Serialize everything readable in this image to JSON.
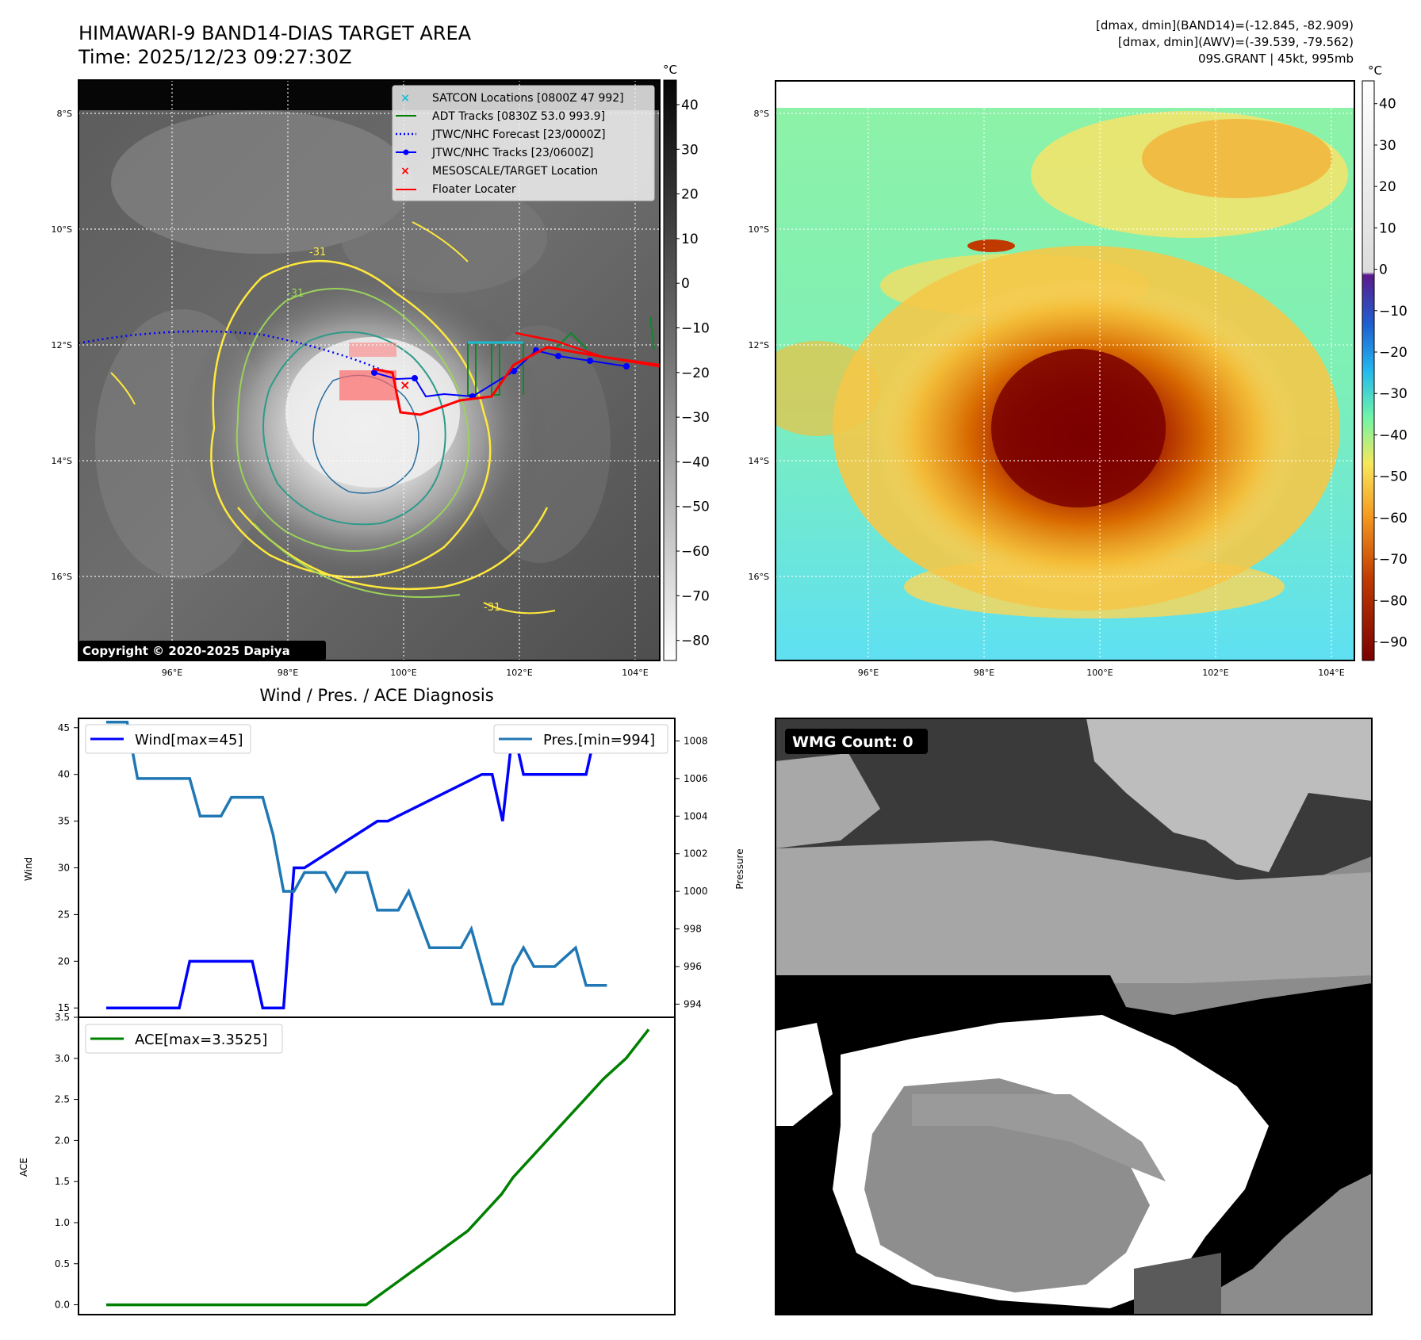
{
  "header": {
    "title_line1": "HIMAWARI-9 BAND14-DIAS TARGET AREA",
    "title_line2": "Time: 2025/12/23 09:27:30Z",
    "stats_line1": "[dmax, dmin](BAND14)=(-12.845, -82.909)",
    "stats_line2": "[dmax, dmin](AWV)=(-39.539, -79.562)",
    "stats_line3": "09S.GRANT | 45kt, 995mb"
  },
  "ir_panel": {
    "copyright": "Copyright © 2020-2025 Dapiya",
    "unit": "°C",
    "lat_labels": [
      "8°S",
      "10°S",
      "12°S",
      "14°S",
      "16°S"
    ],
    "lon_labels": [
      "96°E",
      "98°E",
      "100°E",
      "102°E",
      "104°E"
    ],
    "cbar_ticks": [
      "40",
      "30",
      "20",
      "10",
      "0",
      "−10",
      "−20",
      "−30",
      "−40",
      "−50",
      "−60",
      "−70",
      "−80"
    ],
    "legend": [
      "SATCON Locations [0800Z 47 992]",
      "ADT Tracks [0830Z 53.0 993.9]",
      "JTWC/NHC Forecast [23/0000Z]",
      "JTWC/NHC Tracks [23/0600Z]",
      "MESOSCALE/TARGET Location",
      "Floater Locater"
    ],
    "contour_labels": [
      "-31",
      "-31",
      "-31"
    ],
    "colors": {
      "satcon": "#17becf",
      "adt": "#008000",
      "forecast": "#0000ff",
      "tracks": "#0000ff",
      "target": "#ff0000",
      "floater": "#ff0000"
    }
  },
  "awv_panel": {
    "unit": "°C",
    "lat_labels": [
      "8°S",
      "10°S",
      "12°S",
      "14°S",
      "16°S"
    ],
    "lon_labels": [
      "96°E",
      "98°E",
      "100°E",
      "102°E",
      "104°E"
    ],
    "cbar_ticks": [
      "40",
      "30",
      "20",
      "10",
      "0",
      "−10",
      "−20",
      "−30",
      "−40",
      "−50",
      "−60",
      "−70",
      "−80",
      "−90"
    ]
  },
  "wmg_panel": {
    "label": "WMG Count: 0"
  },
  "chart_data": [
    {
      "type": "line",
      "title": "Wind / Pres. / ACE Diagnosis",
      "ylabel": "Wind",
      "y2label": "Pressure",
      "ylim": [
        14,
        46
      ],
      "y2lim": [
        993.3,
        1009.2
      ],
      "yticks": [
        15,
        20,
        25,
        30,
        35,
        40,
        45
      ],
      "y2ticks": [
        994,
        996,
        998,
        1000,
        1002,
        1004,
        1006,
        1008
      ],
      "series": [
        {
          "name": "Wind",
          "legend": "Wind[max=45]",
          "color": "#0000ff",
          "x": [
            0,
            7,
            8,
            14,
            15,
            17,
            18,
            19,
            26,
            27,
            36,
            37,
            38,
            39,
            40,
            46,
            47,
            52
          ],
          "values": [
            15,
            15,
            20,
            20,
            15,
            15,
            30,
            30,
            35,
            35,
            40,
            40,
            35,
            45,
            40,
            40,
            45,
            45
          ]
        },
        {
          "name": "Pres.",
          "legend": "Pres.[min=994]",
          "color": "#1f77b4",
          "x": [
            0,
            2,
            3,
            8,
            9,
            11,
            12,
            15,
            16,
            17,
            18,
            19,
            21,
            22,
            23,
            25,
            26,
            28,
            29,
            31,
            32,
            34,
            35,
            37,
            38,
            39,
            40,
            41,
            42,
            43,
            45,
            46,
            47,
            48
          ],
          "values": [
            1009,
            1009,
            1006,
            1006,
            1004,
            1004,
            1005,
            1005,
            1003,
            1000,
            1000,
            1001,
            1001,
            1000,
            1001,
            1001,
            999,
            999,
            1000,
            997,
            997,
            997,
            998,
            994,
            994,
            996,
            997,
            996,
            996,
            996,
            997,
            995,
            995,
            995
          ]
        }
      ]
    },
    {
      "type": "line",
      "ylabel": "ACE",
      "ylim": [
        -0.12,
        3.5
      ],
      "yticks": [
        "0.0",
        "0.5",
        "1.0",
        "1.5",
        "2.0",
        "2.5",
        "3.0",
        "3.5"
      ],
      "series": [
        {
          "name": "ACE",
          "legend": "ACE[max=3.3525]",
          "color": "#008000",
          "x": [
            0,
            23,
            24,
            26,
            28,
            30,
            32,
            34,
            35,
            36,
            38,
            40,
            42,
            44,
            46,
            48
          ],
          "values": [
            0,
            0,
            0.1,
            0.3,
            0.5,
            0.7,
            0.9,
            1.2,
            1.35,
            1.55,
            1.85,
            2.15,
            2.45,
            2.75,
            3.0,
            3.3525
          ]
        }
      ]
    }
  ]
}
